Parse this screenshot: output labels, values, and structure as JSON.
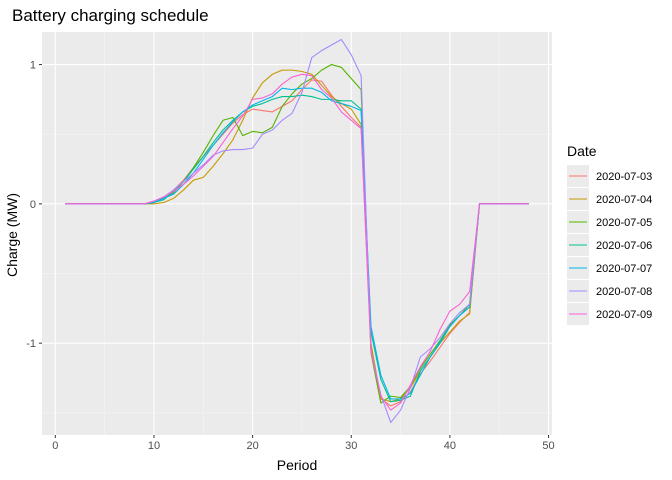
{
  "chart_data": {
    "type": "line",
    "title": "Battery charging schedule",
    "xlabel": "Period",
    "ylabel": "Charge (MW)",
    "xlim": [
      -1.35,
      50.35
    ],
    "ylim": [
      -1.6591,
      1.2336
    ],
    "x_ticks": [
      0,
      10,
      20,
      30,
      40,
      50
    ],
    "y_ticks": [
      -1,
      0,
      1
    ],
    "y_tick_labels": [
      "-1",
      "0",
      "1"
    ],
    "grid": true,
    "legend": {
      "title": "Date",
      "position": "right"
    },
    "x": [
      1,
      2,
      3,
      4,
      5,
      6,
      7,
      8,
      9,
      10,
      11,
      12,
      13,
      14,
      15,
      16,
      17,
      18,
      19,
      20,
      21,
      22,
      23,
      24,
      25,
      26,
      27,
      28,
      29,
      30,
      31,
      32,
      33,
      34,
      35,
      36,
      37,
      38,
      39,
      40,
      41,
      42,
      43,
      44,
      45,
      46,
      47,
      48
    ],
    "series": [
      {
        "name": "2020-07-03",
        "color": "#F8766D",
        "values": [
          0,
          0,
          0,
          0,
          0,
          0,
          0,
          0,
          0,
          0.01,
          0.05,
          0.1,
          0.17,
          0.26,
          0.34,
          0.42,
          0.5,
          0.58,
          0.64,
          0.68,
          0.67,
          0.66,
          0.7,
          0.74,
          0.82,
          0.89,
          0.88,
          0.78,
          0.7,
          0.62,
          0.55,
          -1.03,
          -1.4,
          -1.45,
          -1.42,
          -1.35,
          -1.22,
          -1.13,
          -1.03,
          -0.93,
          -0.85,
          -0.78,
          0,
          0,
          0,
          0,
          0,
          0
        ]
      },
      {
        "name": "2020-07-04",
        "color": "#C49A00",
        "values": [
          0,
          0,
          0,
          0,
          0,
          0,
          0,
          0,
          0,
          0,
          0.01,
          0.04,
          0.1,
          0.17,
          0.19,
          0.27,
          0.36,
          0.46,
          0.6,
          0.76,
          0.87,
          0.93,
          0.96,
          0.96,
          0.95,
          0.93,
          0.85,
          0.77,
          0.72,
          0.68,
          0.57,
          -1.0,
          -1.4,
          -1.42,
          -1.4,
          -1.32,
          -1.2,
          -1.1,
          -1.0,
          -0.92,
          -0.84,
          -0.79,
          0,
          0,
          0,
          0,
          0,
          0
        ]
      },
      {
        "name": "2020-07-05",
        "color": "#53B400",
        "values": [
          0,
          0,
          0,
          0,
          0,
          0,
          0,
          0,
          0,
          0.01,
          0.04,
          0.08,
          0.16,
          0.26,
          0.37,
          0.49,
          0.6,
          0.62,
          0.49,
          0.52,
          0.51,
          0.55,
          0.7,
          0.79,
          0.86,
          0.9,
          0.96,
          1.0,
          0.98,
          0.9,
          0.82,
          -1.07,
          -1.43,
          -1.38,
          -1.39,
          -1.31,
          -1.18,
          -1.08,
          -0.98,
          -0.87,
          -0.8,
          -0.72,
          0,
          0,
          0,
          0,
          0,
          0
        ]
      },
      {
        "name": "2020-07-06",
        "color": "#00C094",
        "values": [
          0,
          0,
          0,
          0,
          0,
          0,
          0,
          0,
          0,
          0.01,
          0.03,
          0.09,
          0.16,
          0.25,
          0.34,
          0.44,
          0.53,
          0.6,
          0.66,
          0.7,
          0.72,
          0.75,
          0.77,
          0.77,
          0.78,
          0.77,
          0.75,
          0.75,
          0.74,
          0.74,
          0.68,
          -0.92,
          -1.26,
          -1.42,
          -1.41,
          -1.38,
          -1.2,
          -1.1,
          -1.0,
          -0.88,
          -0.8,
          -0.74,
          0,
          0,
          0,
          0,
          0,
          0
        ]
      },
      {
        "name": "2020-07-07",
        "color": "#00B6EB",
        "values": [
          0,
          0,
          0,
          0,
          0,
          0,
          0,
          0,
          0,
          0.01,
          0.04,
          0.07,
          0.14,
          0.22,
          0.32,
          0.42,
          0.51,
          0.59,
          0.66,
          0.71,
          0.74,
          0.77,
          0.83,
          0.82,
          0.83,
          0.83,
          0.8,
          0.74,
          0.72,
          0.7,
          0.67,
          -0.88,
          -1.23,
          -1.4,
          -1.4,
          -1.36,
          -1.23,
          -1.1,
          -0.99,
          -0.88,
          -0.8,
          -0.74,
          0,
          0,
          0,
          0,
          0,
          0
        ]
      },
      {
        "name": "2020-07-08",
        "color": "#A58AFF",
        "values": [
          0,
          0,
          0,
          0,
          0,
          0,
          0,
          0,
          0,
          0.02,
          0.05,
          0.1,
          0.16,
          0.22,
          0.28,
          0.35,
          0.38,
          0.39,
          0.39,
          0.4,
          0.5,
          0.53,
          0.6,
          0.65,
          0.8,
          1.05,
          1.1,
          1.14,
          1.18,
          1.07,
          0.92,
          -1.05,
          -1.37,
          -1.57,
          -1.48,
          -1.32,
          -1.1,
          -1.04,
          -0.96,
          -0.86,
          -0.78,
          -0.72,
          0,
          0,
          0,
          0,
          0,
          0
        ]
      },
      {
        "name": "2020-07-09",
        "color": "#FB61D7",
        "values": [
          0,
          0,
          0,
          0,
          0,
          0,
          0,
          0,
          0,
          0.02,
          0.05,
          0.09,
          0.14,
          0.2,
          0.27,
          0.34,
          0.44,
          0.54,
          0.63,
          0.75,
          0.76,
          0.79,
          0.86,
          0.91,
          0.93,
          0.92,
          0.82,
          0.76,
          0.66,
          0.6,
          0.54,
          -1.06,
          -1.38,
          -1.48,
          -1.43,
          -1.3,
          -1.17,
          -1.06,
          -0.9,
          -0.77,
          -0.72,
          -0.63,
          0,
          0,
          0,
          0,
          0,
          0
        ]
      }
    ]
  }
}
